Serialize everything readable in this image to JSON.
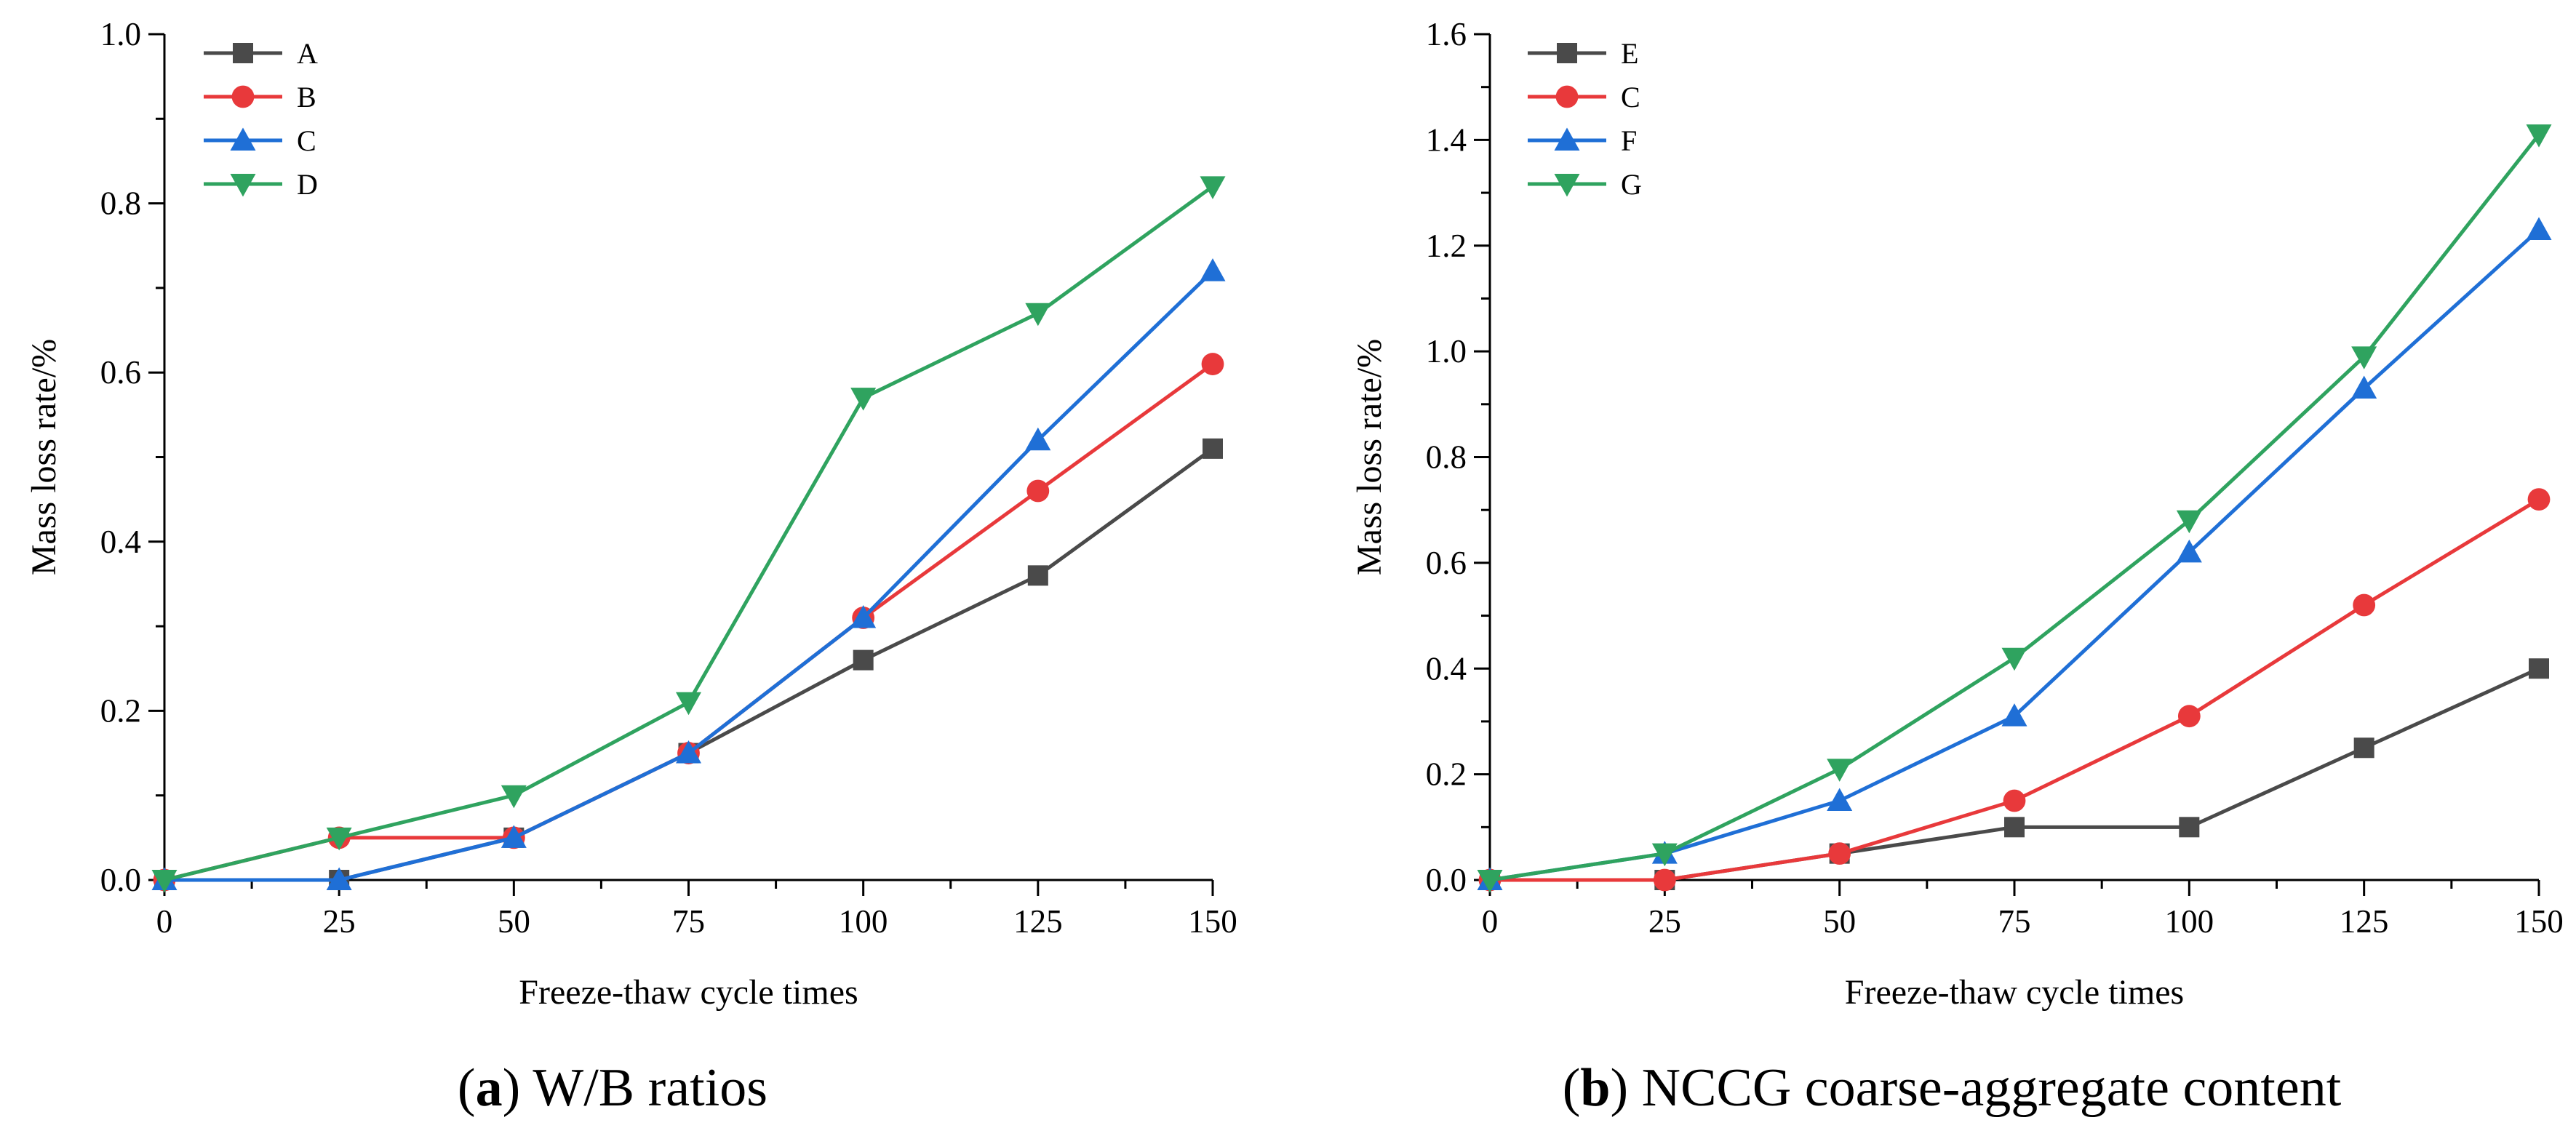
{
  "chart_data": [
    {
      "type": "line",
      "panel": "a",
      "caption_letter": "a",
      "caption_text": "W/B ratios",
      "xlabel": "Freeze-thaw cycle times",
      "ylabel": "Mass loss rate/%",
      "xlim": [
        0,
        150
      ],
      "ylim": [
        0,
        1.0
      ],
      "xticks": [
        0,
        25,
        50,
        75,
        100,
        125,
        150
      ],
      "yticks": [
        0.0,
        0.2,
        0.4,
        0.6,
        0.8,
        1.0
      ],
      "ytick_labels": [
        "0.0",
        "0.2",
        "0.4",
        "0.6",
        "0.8",
        "1.0"
      ],
      "x": [
        0,
        25,
        50,
        75,
        100,
        125,
        150
      ],
      "legend_position": "top-left",
      "series": [
        {
          "name": "A",
          "marker": "square",
          "color": "#4a4a4a",
          "values": [
            0,
            0,
            0.05,
            0.15,
            0.26,
            0.36,
            0.51
          ]
        },
        {
          "name": "B",
          "marker": "circle",
          "color": "#e8393b",
          "values": [
            0,
            0.05,
            0.05,
            0.15,
            0.31,
            0.46,
            0.61
          ]
        },
        {
          "name": "C",
          "marker": "triangle-up",
          "color": "#1f6fd6",
          "values": [
            0,
            0,
            0.05,
            0.15,
            0.31,
            0.52,
            0.72
          ]
        },
        {
          "name": "D",
          "marker": "triangle-down",
          "color": "#2fa35f",
          "values": [
            0,
            0.05,
            0.1,
            0.21,
            0.57,
            0.67,
            0.82
          ]
        }
      ]
    },
    {
      "type": "line",
      "panel": "b",
      "caption_letter": "b",
      "caption_text": "NCCG coarse-aggregate content",
      "xlabel": "Freeze-thaw cycle times",
      "ylabel": "Mass loss rate/%",
      "xlim": [
        0,
        150
      ],
      "ylim": [
        0,
        1.6
      ],
      "xticks": [
        0,
        25,
        50,
        75,
        100,
        125,
        150
      ],
      "yticks": [
        0.0,
        0.2,
        0.4,
        0.6,
        0.8,
        1.0,
        1.2,
        1.4,
        1.6
      ],
      "ytick_labels": [
        "0.0",
        "0.2",
        "0.4",
        "0.6",
        "0.8",
        "1.0",
        "1.2",
        "1.4",
        "1.6"
      ],
      "x": [
        0,
        25,
        50,
        75,
        100,
        125,
        150
      ],
      "legend_position": "top-left",
      "series": [
        {
          "name": "E",
          "marker": "square",
          "color": "#4a4a4a",
          "values": [
            0,
            0,
            0.05,
            0.1,
            0.1,
            0.25,
            0.4
          ]
        },
        {
          "name": "C",
          "marker": "circle",
          "color": "#e8393b",
          "values": [
            0,
            0,
            0.05,
            0.15,
            0.31,
            0.52,
            0.72
          ]
        },
        {
          "name": "F",
          "marker": "triangle-up",
          "color": "#1f6fd6",
          "values": [
            0,
            0.05,
            0.15,
            0.31,
            0.62,
            0.93,
            1.23
          ]
        },
        {
          "name": "G",
          "marker": "triangle-down",
          "color": "#2fa35f",
          "values": [
            0,
            0.05,
            0.21,
            0.42,
            0.68,
            0.99,
            1.41
          ]
        }
      ]
    }
  ]
}
